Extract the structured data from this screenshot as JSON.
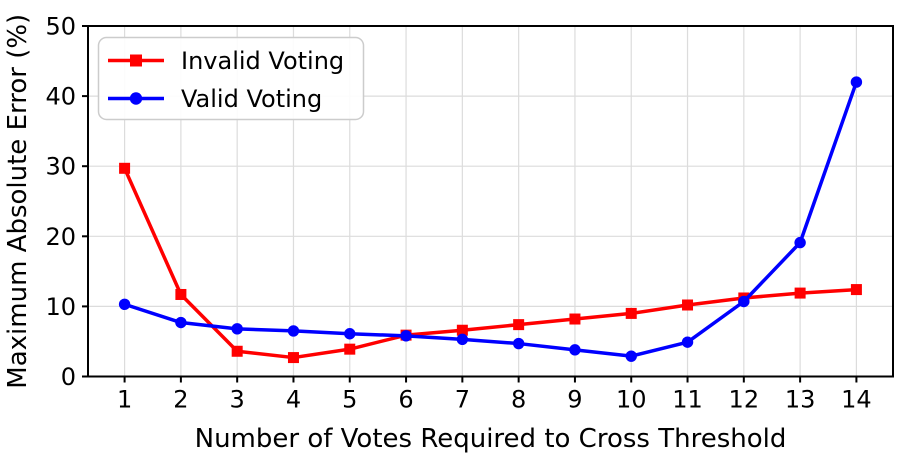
{
  "chart_data": {
    "type": "line",
    "title": "",
    "xlabel": "Number of Votes Required to Cross Threshold",
    "ylabel": "Maximum Absolute Error (%)",
    "x": [
      1,
      2,
      3,
      4,
      5,
      6,
      7,
      8,
      9,
      10,
      11,
      12,
      13,
      14
    ],
    "series": [
      {
        "name": "Invalid Voting",
        "color": "#ff0000",
        "marker": "square",
        "values": [
          29.7,
          11.7,
          3.6,
          2.7,
          3.9,
          5.9,
          6.6,
          7.4,
          8.2,
          9.0,
          10.2,
          11.2,
          11.9,
          12.4
        ]
      },
      {
        "name": "Valid Voting",
        "color": "#0000ff",
        "marker": "circle",
        "values": [
          10.3,
          7.7,
          6.8,
          6.5,
          6.1,
          5.8,
          5.3,
          4.7,
          3.8,
          2.9,
          4.9,
          10.7,
          19.1,
          42.0
        ]
      }
    ],
    "xlim": [
      0.35,
      14.65
    ],
    "ylim": [
      0,
      50
    ],
    "xticks": [
      1,
      2,
      3,
      4,
      5,
      6,
      7,
      8,
      9,
      10,
      11,
      12,
      13,
      14
    ],
    "yticks": [
      0,
      10,
      20,
      30,
      40,
      50
    ],
    "grid": true,
    "grid_color": "#dcdcdc",
    "spine_color": "#000000",
    "legend_position": "upper left",
    "legend_border_color": "#cccccc"
  }
}
